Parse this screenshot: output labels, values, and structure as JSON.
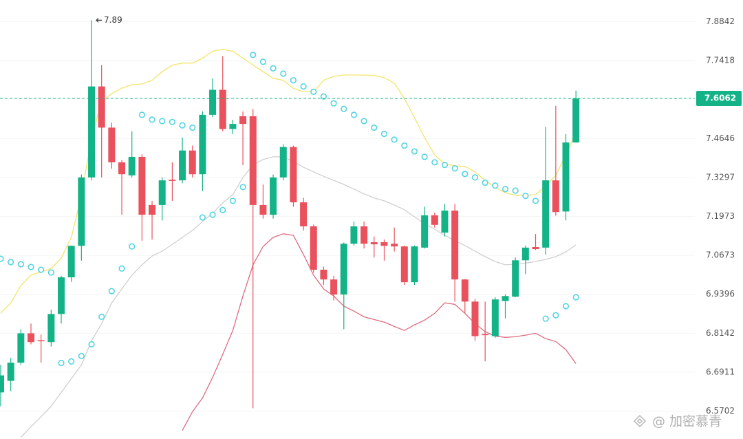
{
  "chart_data": {
    "type": "candlestick",
    "log_scale": true,
    "grid": true,
    "ylim": [
      6.485,
      7.965
    ],
    "yticks": [
      7.8842,
      7.7418,
      7.4646,
      7.3297,
      7.1973,
      7.0673,
      6.9396,
      6.8142,
      6.6911,
      6.5702
    ],
    "up_color": "#14b387",
    "down_color": "#e9515d",
    "open": [
      6.628,
      6.664,
      6.721,
      6.814,
      6.792,
      6.786,
      6.876,
      6.995,
      7.099,
      7.33,
      7.649,
      7.503,
      7.382,
      7.337,
      7.401,
      7.236,
      7.236,
      7.322,
      7.32,
      7.423,
      7.341,
      7.548,
      7.637,
      7.498,
      7.543,
      7.543,
      7.236,
      7.203,
      7.33,
      7.435,
      7.245,
      7.164,
      7.02,
      6.988,
      6.939,
      7.106,
      7.164,
      7.111,
      7.111,
      7.106,
      7.097,
      6.979,
      7.093,
      7.201,
      7.143,
      7.217,
      6.988,
      6.916,
      6.812,
      6.805,
      6.918,
      6.932,
      7.051,
      7.095,
      7.093,
      7.32,
      7.214,
      7.451
    ],
    "high": [
      6.714,
      6.736,
      6.827,
      6.845,
      6.81,
      6.89,
      7.0,
      7.1,
      7.34,
      7.89,
      7.726,
      7.52,
      7.39,
      7.49,
      7.41,
      7.25,
      7.33,
      7.382,
      7.468,
      7.44,
      7.56,
      7.678,
      7.758,
      7.53,
      7.56,
      7.568,
      7.306,
      7.34,
      7.445,
      7.44,
      7.26,
      7.17,
      7.03,
      7.0,
      7.11,
      7.18,
      7.18,
      7.13,
      7.12,
      7.16,
      7.1,
      7.1,
      7.23,
      7.21,
      7.24,
      7.24,
      6.99,
      6.925,
      6.916,
      6.93,
      6.94,
      7.06,
      7.1,
      7.138,
      7.506,
      7.58,
      7.48,
      7.634
    ],
    "low": [
      6.585,
      6.632,
      6.714,
      6.779,
      6.721,
      6.772,
      6.845,
      6.98,
      7.05,
      7.32,
      7.33,
      7.36,
      7.203,
      7.33,
      7.116,
      7.12,
      7.184,
      7.25,
      7.31,
      7.33,
      7.283,
      7.54,
      7.49,
      7.48,
      7.372,
      6.579,
      7.19,
      7.19,
      7.32,
      7.23,
      7.15,
      7.01,
      6.97,
      6.92,
      6.827,
      7.1,
      7.09,
      7.06,
      7.05,
      7.08,
      6.97,
      6.97,
      7.09,
      7.16,
      7.13,
      6.916,
      6.88,
      6.79,
      6.725,
      6.8,
      6.862,
      6.93,
      7.006,
      7.085,
      7.07,
      7.2,
      7.184,
      7.45
    ],
    "close": [
      6.681,
      6.721,
      6.814,
      6.786,
      6.79,
      6.876,
      6.995,
      7.099,
      7.33,
      7.649,
      7.503,
      7.382,
      7.341,
      7.401,
      7.203,
      7.203,
      7.32,
      7.318,
      7.423,
      7.341,
      7.548,
      7.637,
      7.498,
      7.516,
      7.516,
      7.236,
      7.203,
      7.33,
      7.435,
      7.245,
      7.164,
      7.02,
      6.988,
      6.939,
      7.106,
      7.164,
      7.106,
      7.104,
      7.099,
      7.097,
      6.979,
      7.097,
      7.201,
      7.169,
      7.217,
      6.988,
      6.916,
      6.805,
      6.808,
      6.923,
      6.934,
      7.051,
      7.093,
      7.088,
      7.32,
      7.212,
      7.451,
      7.606
    ],
    "bands": [
      {
        "color": "#f3e46a",
        "values": [
          6.878,
          6.912,
          6.968,
          7.002,
          7.013,
          7.024,
          7.058,
          7.127,
          7.267,
          7.468,
          7.594,
          7.624,
          7.643,
          7.655,
          7.658,
          7.671,
          7.702,
          7.726,
          7.733,
          7.733,
          7.751,
          7.776,
          7.783,
          7.776,
          7.751,
          7.726,
          7.702,
          7.678,
          7.671,
          7.642,
          7.63,
          7.63,
          7.671,
          7.685,
          7.69,
          7.69,
          7.69,
          7.688,
          7.681,
          7.661,
          7.606,
          7.538,
          7.468,
          7.408,
          7.377,
          7.37,
          7.368,
          7.349,
          7.32,
          7.295,
          7.278,
          7.269,
          7.269,
          7.271,
          7.302,
          7.337,
          7.408,
          7.488
        ]
      },
      {
        "color": "#cfcfcf",
        "values": [
          null,
          null,
          6.49,
          6.522,
          6.553,
          6.585,
          6.628,
          6.671,
          6.714,
          6.79,
          6.845,
          6.912,
          6.957,
          7.002,
          7.036,
          7.065,
          7.081,
          7.104,
          7.127,
          7.15,
          7.18,
          7.208,
          7.243,
          7.271,
          7.33,
          7.373,
          7.392,
          7.401,
          7.401,
          7.385,
          7.365,
          7.349,
          7.334,
          7.32,
          7.306,
          7.29,
          7.274,
          7.26,
          7.25,
          7.236,
          7.22,
          7.196,
          7.173,
          7.155,
          7.134,
          7.116,
          7.1,
          7.081,
          7.063,
          7.047,
          7.036,
          7.038,
          7.042,
          7.047,
          7.054,
          7.063,
          7.079,
          7.102
        ]
      },
      {
        "color": "#dd6b80",
        "values": [
          null,
          null,
          null,
          null,
          null,
          null,
          null,
          null,
          null,
          null,
          null,
          null,
          null,
          null,
          null,
          null,
          null,
          null,
          6.511,
          6.568,
          6.611,
          6.675,
          6.747,
          6.823,
          6.934,
          7.036,
          7.097,
          7.127,
          7.139,
          7.134,
          7.07,
          7.002,
          6.957,
          6.934,
          6.901,
          6.885,
          6.867,
          6.858,
          6.85,
          6.836,
          6.823,
          6.841,
          6.856,
          6.878,
          6.912,
          6.907,
          6.878,
          6.845,
          6.819,
          6.805,
          6.801,
          6.803,
          6.808,
          6.814,
          6.797,
          6.788,
          6.762,
          6.718
        ]
      }
    ],
    "sar": {
      "color": "#52d5e2",
      "values": [
        7.056,
        7.045,
        7.038,
        7.029,
        7.02,
        7.011,
        6.72,
        6.725,
        6.742,
        6.779,
        6.867,
        6.95,
        7.024,
        7.097,
        7.548,
        7.531,
        7.526,
        7.523,
        7.511,
        7.503,
        7.194,
        7.203,
        7.219,
        7.25,
        7.297,
        7.763,
        7.738,
        7.714,
        7.695,
        7.671,
        7.649,
        7.63,
        7.613,
        7.589,
        7.569,
        7.548,
        7.526,
        7.503,
        7.481,
        7.461,
        7.44,
        7.42,
        7.401,
        7.382,
        7.373,
        7.361,
        7.342,
        7.33,
        7.312,
        7.302,
        7.29,
        7.285,
        7.267,
        7.25,
        6.861,
        6.872,
        6.901,
        6.93
      ]
    },
    "last_price": 7.6062,
    "last_price_color": "#14b387",
    "annotations": [
      {
        "text": "7.89"
      }
    ]
  },
  "watermark": "@ 加密慕青"
}
